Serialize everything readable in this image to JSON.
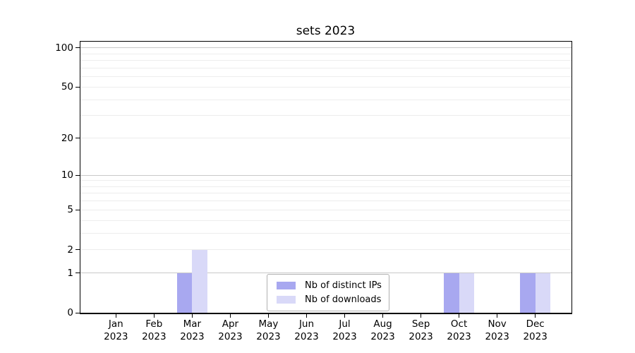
{
  "chart_data": {
    "type": "bar",
    "title": "sets 2023",
    "categories": [
      "Jan 2023",
      "Feb 2023",
      "Mar 2023",
      "Apr 2023",
      "May 2023",
      "Jun 2023",
      "Jul 2023",
      "Aug 2023",
      "Sep 2023",
      "Oct 2023",
      "Nov 2023",
      "Dec 2023"
    ],
    "series": [
      {
        "name": "Nb of distinct IPs",
        "color": "#a8a8f0",
        "values": [
          0,
          0,
          1,
          0,
          0,
          0,
          0,
          0,
          0,
          1,
          0,
          1
        ]
      },
      {
        "name": "Nb of downloads",
        "color": "#d9d9f8",
        "values": [
          0,
          0,
          2,
          0,
          0,
          0,
          0,
          0,
          0,
          1,
          0,
          1
        ]
      }
    ],
    "xlabel": "",
    "ylabel": "",
    "yscale": "log1p",
    "ylim": [
      0,
      112
    ],
    "yticks": [
      0,
      1,
      2,
      5,
      10,
      20,
      50,
      100
    ],
    "grid": {
      "major_lines": [
        1,
        10,
        100
      ],
      "minor_lines": [
        2,
        3,
        4,
        5,
        6,
        7,
        8,
        9,
        20,
        30,
        40,
        50,
        60,
        70,
        80,
        90
      ],
      "major_color": "#c9c9c9",
      "minor_color": "#ededed"
    },
    "legend_position": "lower center"
  },
  "colors": {
    "background": "#ffffff",
    "axis": "#000000",
    "text": "#000000",
    "legend_border": "#b0b0b0"
  }
}
